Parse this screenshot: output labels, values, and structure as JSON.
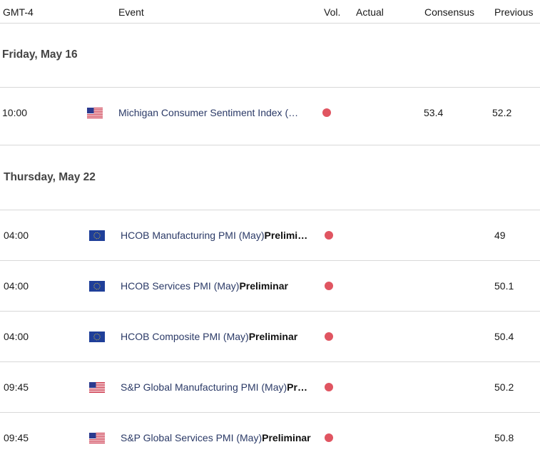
{
  "columns": {
    "time": "GMT-4",
    "event": "Event",
    "vol": "Vol.",
    "actual": "Actual",
    "consensus": "Consensus",
    "previous": "Previous"
  },
  "groups": [
    {
      "day": "Friday, May 16",
      "rows": [
        {
          "time": "10:00",
          "flag": "us-flag-icon",
          "event": "Michigan Consumer Sentiment Index (…",
          "event_bold": "",
          "vol": "high",
          "actual": "",
          "consensus": "53.4",
          "previous": "52.2"
        }
      ]
    },
    {
      "day": "Thursday, May 22",
      "rows": [
        {
          "time": "04:00",
          "flag": "eu-flag-icon",
          "event": "HCOB Manufacturing PMI (May)",
          "event_bold": "Prelimi…",
          "vol": "high",
          "actual": "",
          "consensus": "",
          "previous": "49"
        },
        {
          "time": "04:00",
          "flag": "eu-flag-icon",
          "event": "HCOB Services PMI (May)",
          "event_bold": "Preliminar",
          "vol": "high",
          "actual": "",
          "consensus": "",
          "previous": "50.1"
        },
        {
          "time": "04:00",
          "flag": "eu-flag-icon",
          "event": "HCOB Composite PMI (May)",
          "event_bold": "Preliminar",
          "vol": "high",
          "actual": "",
          "consensus": "",
          "previous": "50.4"
        },
        {
          "time": "09:45",
          "flag": "us-flag-icon",
          "event": "S&P Global Manufacturing PMI (May)",
          "event_bold": "Pr…",
          "vol": "high",
          "actual": "",
          "consensus": "",
          "previous": "50.2"
        },
        {
          "time": "09:45",
          "flag": "us-flag-icon",
          "event": "S&P Global Services PMI (May)",
          "event_bold": "Preliminar",
          "vol": "high",
          "actual": "",
          "consensus": "",
          "previous": "50.8"
        }
      ]
    }
  ],
  "colors": {
    "vol_high": "#e05561",
    "event_text": "#2b3a67"
  }
}
